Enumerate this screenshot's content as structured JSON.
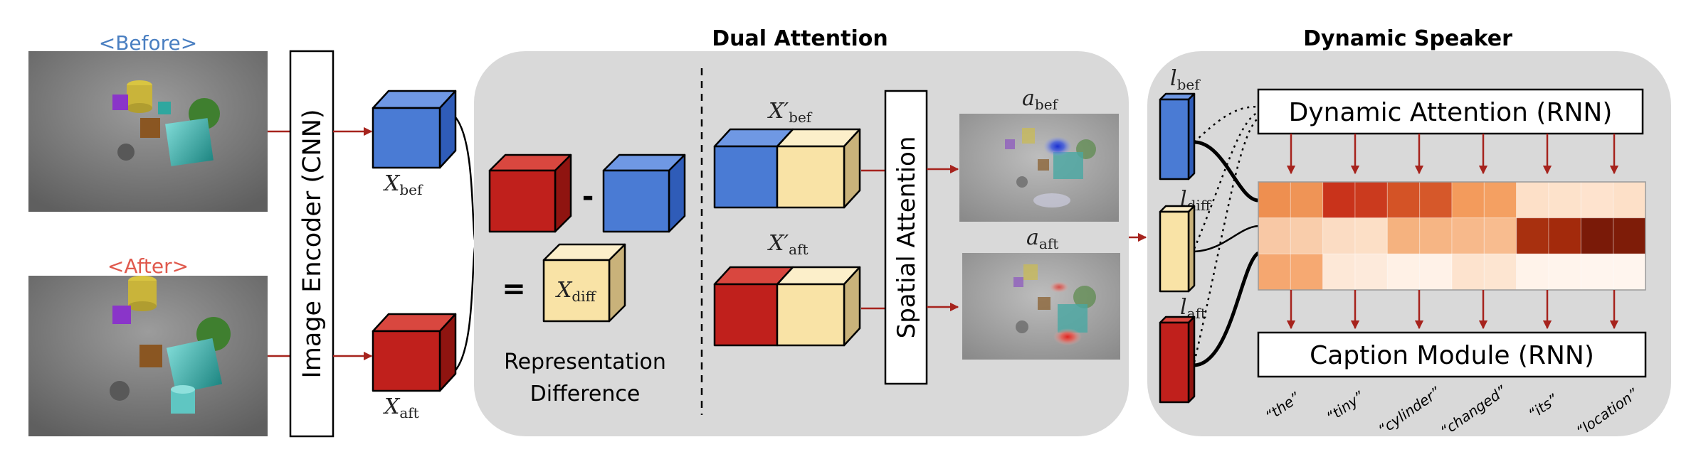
{
  "image_labels": {
    "before": "<Before>",
    "after": "<After>"
  },
  "image_encoder": {
    "label": "Image Encoder (CNN)"
  },
  "features": {
    "x_bef": "X",
    "x_bef_sub": "bef",
    "x_aft": "X",
    "x_aft_sub": "aft"
  },
  "dual_attention": {
    "title": "Dual Attention",
    "minus": "-",
    "equals": "=",
    "x_diff": "X",
    "x_diff_sub": "diff",
    "rep_diff_line1": "Representation",
    "rep_diff_line2": "Difference",
    "x_bef_prime": "X′",
    "x_bef_prime_sub": "bef",
    "x_aft_prime": "X′",
    "x_aft_prime_sub": "aft",
    "spatial_attention": "Spatial Attention",
    "a_bef": "a",
    "a_bef_sub": "bef",
    "a_aft": "a",
    "a_aft_sub": "aft"
  },
  "dynamic_speaker": {
    "title": "Dynamic Speaker",
    "l_bef": "l",
    "l_bef_sub": "bef",
    "l_diff": "l",
    "l_diff_sub": "diff",
    "l_aft": "l",
    "l_aft_sub": "aft",
    "attention_module": "Dynamic Attention (RNN)",
    "caption_module": "Caption Module (RNN)",
    "words": [
      "“the”",
      "“tiny”",
      "“cylinder”",
      "“changed”",
      "“its”",
      "“location”"
    ]
  },
  "colors": {
    "panel": "#d9d9d9",
    "cube_blue": "#4a7bd4",
    "cube_red": "#c0201c",
    "cube_yellow": "#f9e3a6",
    "arrow": "#a6231d",
    "before_label": "#4a7fc1",
    "after_label": "#e05a4e"
  },
  "heatmap": {
    "rows": [
      [
        "#ee8f50",
        "#ef9456",
        "#c9331b",
        "#cb3a1e",
        "#d45326",
        "#d6582a",
        "#f39b5c",
        "#f4a062",
        "#fde0c8",
        "#fde2cb",
        "#fee3ce",
        "#fde0c8"
      ],
      [
        "#f8c8a5",
        "#f9cdab",
        "#fbdcc3",
        "#fcdfc6",
        "#f5b27f",
        "#f6b584",
        "#f7b98b",
        "#f8bc8f",
        "#a8300f",
        "#a32a0c",
        "#7a1a08",
        "#7e1c08"
      ],
      [
        "#f5a770",
        "#f6a972",
        "#fde8d7",
        "#fdeadb",
        "#fff1e6",
        "#fff2e8",
        "#fde3ce",
        "#fde5d1",
        "#fff3ea",
        "#fff4ec",
        "#fff5ee",
        "#fff5ee"
      ]
    ]
  }
}
